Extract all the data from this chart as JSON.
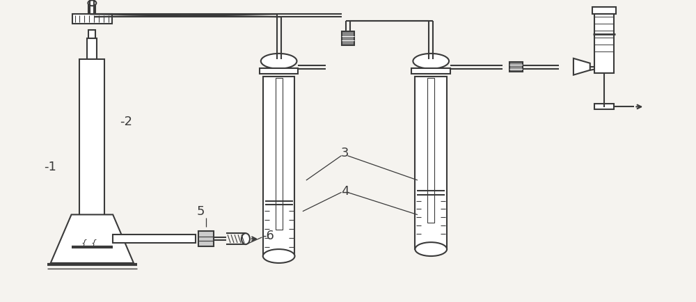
{
  "bg_color": "#f5f3ef",
  "line_color": "#3a3a3a",
  "lw": 1.5,
  "tube_lw": 1.2,
  "fig_w": 10.0,
  "fig_h": 4.35,
  "dpi": 100
}
